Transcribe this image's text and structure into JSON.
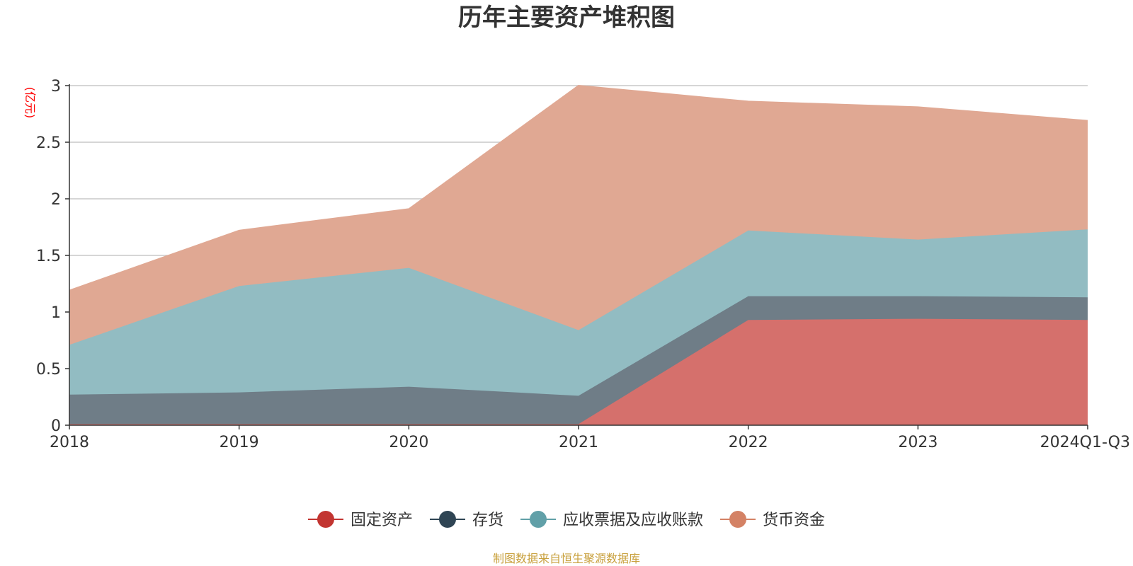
{
  "chart_data": {
    "type": "area",
    "stacked": true,
    "title": "历年主要资产堆积图",
    "unit_label": "(亿元)",
    "categories": [
      "2018",
      "2019",
      "2020",
      "2021",
      "2022",
      "2023",
      "2024Q1-Q3"
    ],
    "ylim": [
      0,
      3
    ],
    "yticks": [
      "0",
      "0.5",
      "1",
      "1.5",
      "2",
      "2.5",
      "3"
    ],
    "grid": true,
    "legend_position": "bottom-center",
    "series": [
      {
        "name": "固定资产",
        "color": "#c23531",
        "fill": "#d5706c",
        "values": [
          0.01,
          0.01,
          0.01,
          0.01,
          0.93,
          0.94,
          0.93
        ]
      },
      {
        "name": "存货",
        "color": "#2f4554",
        "fill": "#6f7d87",
        "values": [
          0.26,
          0.28,
          0.33,
          0.25,
          0.21,
          0.2,
          0.2
        ]
      },
      {
        "name": "应收票据及应收账款",
        "color": "#61a0a8",
        "fill": "#92bcc2",
        "values": [
          0.44,
          0.94,
          1.05,
          0.58,
          0.58,
          0.5,
          0.6
        ]
      },
      {
        "name": "货币资金",
        "color": "#d48265",
        "fill": "#e0a893",
        "values": [
          0.48,
          0.49,
          0.52,
          2.16,
          1.14,
          1.17,
          0.96
        ]
      }
    ],
    "source": "制图数据来自恒生聚源数据库"
  }
}
